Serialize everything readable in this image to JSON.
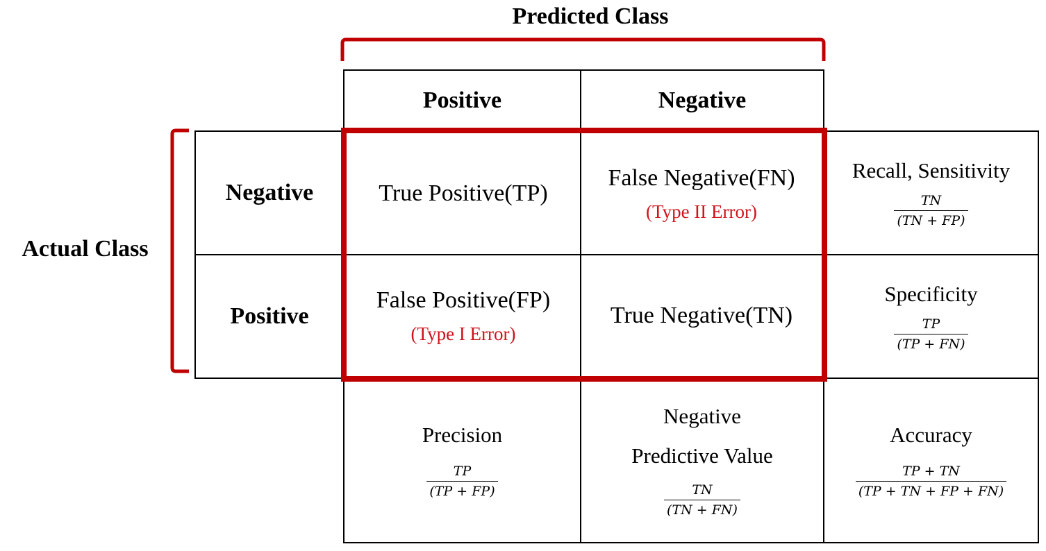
{
  "predicted_class": {
    "title": "Predicted Class",
    "columns": [
      "Positive",
      "Negative"
    ]
  },
  "actual_class": {
    "title": "Actual Class",
    "rows": [
      "Negative",
      "Positive"
    ]
  },
  "matrix": {
    "tp": {
      "label": "True Positive(TP)"
    },
    "fn": {
      "label": "False Negative(FN)",
      "error": "(Type II Error)"
    },
    "fp": {
      "label": "False Positive(FP)",
      "error": "(Type I Error)"
    },
    "tn": {
      "label": "True Negative(TN)"
    }
  },
  "metrics": {
    "recall": {
      "name": "Recall, Sensitivity",
      "numerator": "TN",
      "denominator": "(TN + FP)"
    },
    "specificity": {
      "name": "Specificity",
      "numerator": "TP",
      "denominator": "(TP + FN)"
    },
    "precision": {
      "name": "Precision",
      "numerator": "TP",
      "denominator": "(TP + FP)"
    },
    "npv": {
      "name_line1": "Negative",
      "name_line2": "Predictive Value",
      "numerator": "TN",
      "denominator": "(TN + FN)"
    },
    "accuracy": {
      "name": "Accuracy",
      "numerator": "TP + TN",
      "denominator": "(TP + TN + FP + FN)"
    }
  },
  "colors": {
    "highlight": "#c00000",
    "error_text": "#d0121a",
    "grid": "#000000"
  }
}
